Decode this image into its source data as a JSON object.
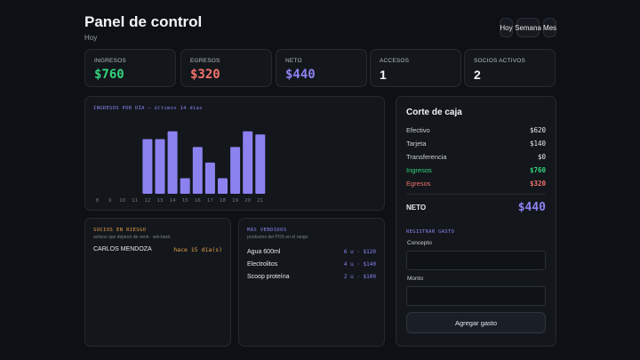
{
  "header": {
    "title": "Panel de control",
    "subtitle": "Hoy",
    "range_buttons": [
      {
        "label": "Hoy"
      },
      {
        "label": "Semana"
      },
      {
        "label": "Mes"
      }
    ]
  },
  "kpis": [
    {
      "label": "INGRESOS",
      "value": "$760",
      "color": "#34d27b"
    },
    {
      "label": "EGRESOS",
      "value": "$320",
      "color": "#f1736a"
    },
    {
      "label": "NETO",
      "value": "$440",
      "color": "#8b82f0"
    },
    {
      "label": "ACCESOS",
      "value": "1",
      "color": "#f3f4f6"
    },
    {
      "label": "SOCIOS ACTIVOS",
      "value": "2",
      "color": "#f3f4f6"
    }
  ],
  "chart_data": {
    "type": "bar",
    "title": "INGRESOS POR DÍA — últimos 14 días",
    "categories": [
      "8",
      "9",
      "10",
      "11",
      "12",
      "13",
      "14",
      "15",
      "16",
      "17",
      "18",
      "19",
      "20",
      "21"
    ],
    "values": [
      0,
      0,
      0,
      0,
      70,
      70,
      80,
      20,
      60,
      40,
      20,
      60,
      80,
      76
    ],
    "ylim": [
      0,
      90
    ],
    "grid": false,
    "bar_color": "#8b82f0"
  },
  "risk": {
    "title": "SOCIOS EN RIESGO",
    "subtitle": "activos que dejaron de venir · win-back",
    "items": [
      {
        "name": "CARLOS MENDOZA",
        "since": "hace 15 día(s)"
      }
    ],
    "title_color": "#e6a04a"
  },
  "bestsellers": {
    "title": "MÁS VENDIDOS",
    "subtitle": "productos del POS en el rango",
    "items": [
      {
        "name": "Agua 600ml",
        "stats": "6 u · $120"
      },
      {
        "name": "Electrolitos",
        "stats": "4 u · $140"
      },
      {
        "name": "Scoop proteína",
        "stats": "2 u · $100"
      }
    ]
  },
  "cash": {
    "title": "Corte de caja",
    "rows": [
      {
        "label": "Efectivo",
        "value": "$620",
        "color": "#c9ced6"
      },
      {
        "label": "Tarjeta",
        "value": "$140",
        "color": "#c9ced6"
      },
      {
        "label": "Transferencia",
        "value": "$0",
        "color": "#c9ced6"
      },
      {
        "label": "Ingresos",
        "value": "$760",
        "color": "#34d27b"
      },
      {
        "label": "Egresos",
        "value": "$320",
        "color": "#f1736a"
      }
    ],
    "neto_label": "NETO",
    "neto_value": "$440",
    "register_title": "REGISTRAR GASTO",
    "concept_label": "Concepto",
    "amount_label": "Monto",
    "concept_value": "",
    "amount_value": "",
    "submit_label": "Agregar gasto"
  }
}
